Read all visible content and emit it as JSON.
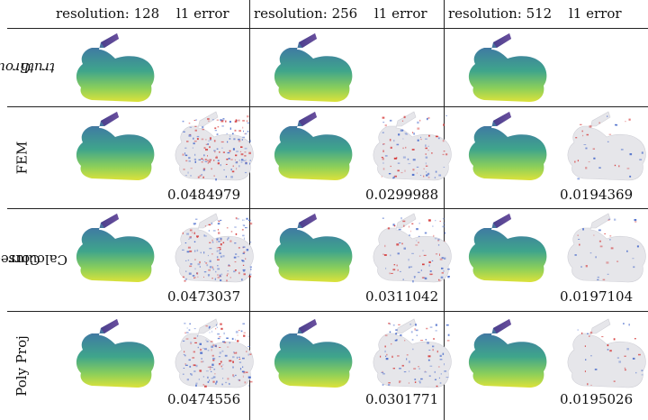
{
  "headers": [
    {
      "resolution": "resolution: 128",
      "error": "l1 error"
    },
    {
      "resolution": "resolution: 256",
      "error": "l1 error"
    },
    {
      "resolution": "resolution: 512",
      "error": "l1 error"
    }
  ],
  "rows": [
    {
      "label_line1": "Ground",
      "label_line2": "truth",
      "italic": true,
      "errors": []
    },
    {
      "label_line1": "FEM",
      "label_line2": "",
      "italic": false,
      "errors": [
        "0.0484979",
        "0.0299988",
        "0.0194369"
      ]
    },
    {
      "label_line1": "Corrected",
      "label_line2": "Calculus",
      "italic": false,
      "errors": [
        "0.0473037",
        "0.0311042",
        "0.0197104"
      ]
    },
    {
      "label_line1": "Poly Proj",
      "label_line2": "",
      "italic": false,
      "errors": [
        "0.0474556",
        "0.0301771",
        "0.0195026"
      ]
    }
  ],
  "colors": {
    "viridis_top": "#5b4e9a",
    "viridis_mid": "#3a9a8f",
    "viridis_bottom": "#d9e23a",
    "error_base": "#e6e6ea",
    "error_red": "#d22a2a",
    "error_blue": "#3f63c8"
  }
}
